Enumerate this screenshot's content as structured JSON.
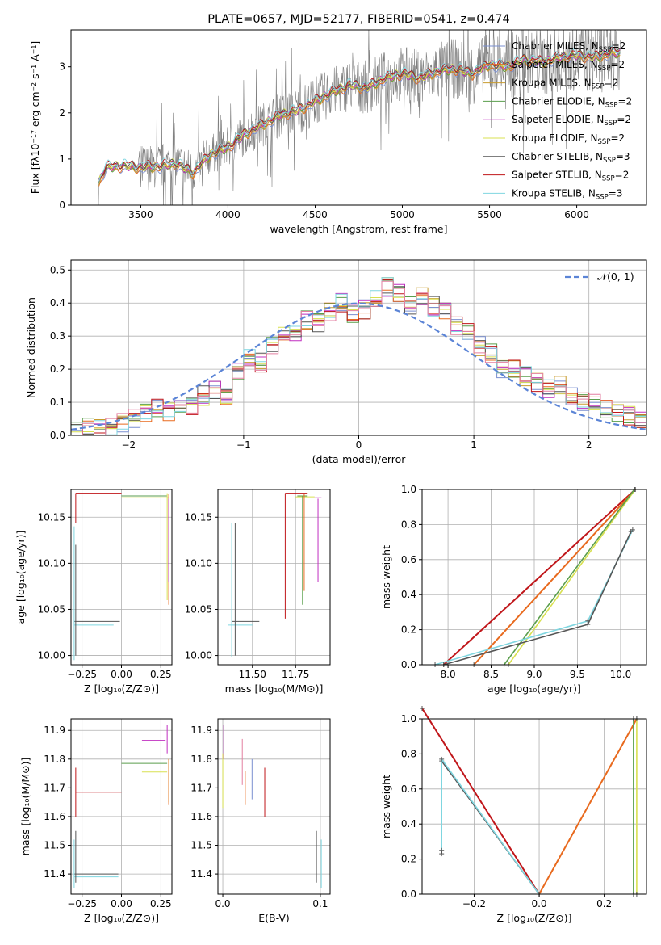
{
  "colors": {
    "chabrier_miles": "#7a8fd0",
    "salpeter_miles": "#e86a1e",
    "kroupa_miles": "#c89b2e",
    "chabrier_elodie": "#5a9e4c",
    "salpeter_elodie": "#c02fc0",
    "kroupa_elodie": "#d8e050",
    "chabrier_stelib": "#555555",
    "salpeter_stelib": "#c0161a",
    "kroupa_stelib": "#7fd6e0",
    "normal": "#5b84d6",
    "data": "#808080",
    "pink": "#e37fa0",
    "grid": "#b0b0b0"
  },
  "chart_data": [
    {
      "id": "spectrum",
      "type": "line",
      "title": "PLATE=0657, MJD=52177, FIBERID=0541, z=0.474",
      "xlabel": "wavelength [Angstrom, rest frame]",
      "ylabel": "Flux [fλ10⁻¹⁷ erg cm⁻² s⁻¹ A⁻¹]",
      "xlim": [
        3100,
        6400
      ],
      "ylim": [
        0,
        3.8
      ],
      "xticks": [
        3500,
        4000,
        4500,
        5000,
        5500,
        6000
      ],
      "yticks": [
        0,
        1,
        2,
        3
      ],
      "grid": false,
      "legend_position": "top-right",
      "model_x": [
        3200,
        3300,
        3400,
        3500,
        3600,
        3700,
        3800,
        3900,
        4000,
        4100,
        4200,
        4300,
        4400,
        4500,
        4600,
        4700,
        4800,
        4900,
        5000,
        5100,
        5200,
        5300,
        5400,
        5500,
        5600,
        5700,
        5800,
        5900,
        6000,
        6100,
        6200
      ],
      "model_y": [
        0.0,
        0.82,
        0.85,
        0.82,
        0.84,
        0.9,
        0.7,
        1.1,
        1.25,
        1.55,
        1.75,
        1.95,
        2.05,
        2.25,
        2.45,
        2.6,
        2.55,
        2.75,
        2.85,
        2.75,
        2.9,
        2.95,
        2.85,
        3.05,
        3.0,
        3.15,
        3.1,
        3.2,
        3.25,
        3.2,
        3.3
      ],
      "series": [
        {
          "name": "Chabrier MILES, N_SSP=2",
          "color_key": "chabrier_miles"
        },
        {
          "name": "Salpeter MILES, N_SSP=2",
          "color_key": "salpeter_miles"
        },
        {
          "name": "Kroupa MILES, N_SSP=2",
          "color_key": "kroupa_miles"
        },
        {
          "name": "Chabrier ELODIE, N_SSP=2",
          "color_key": "chabrier_elodie"
        },
        {
          "name": "Salpeter ELODIE, N_SSP=2",
          "color_key": "salpeter_elodie"
        },
        {
          "name": "Kroupa ELODIE, N_SSP=2",
          "color_key": "kroupa_elodie"
        },
        {
          "name": "Chabrier STELIB, N_SSP=3",
          "color_key": "chabrier_stelib"
        },
        {
          "name": "Salpeter STELIB, N_SSP=2",
          "color_key": "salpeter_stelib"
        },
        {
          "name": "Kroupa STELIB, N_SSP=3",
          "color_key": "kroupa_stelib"
        }
      ]
    },
    {
      "id": "residuals",
      "type": "line",
      "xlabel": "(data-model)/error",
      "ylabel": "Normed distribution",
      "xlim": [
        -2.5,
        2.5
      ],
      "ylim": [
        0,
        0.53
      ],
      "xticks": [
        -2,
        -1,
        0,
        1,
        2
      ],
      "yticks": [
        0.0,
        0.1,
        0.2,
        0.3,
        0.4,
        0.5
      ],
      "grid": true,
      "legend_position": "top-right",
      "legend_label": "𝒩(0, 1)",
      "hist_x": [
        -2.5,
        -2.4,
        -2.3,
        -2.2,
        -2.1,
        -2.0,
        -1.9,
        -1.8,
        -1.7,
        -1.6,
        -1.5,
        -1.4,
        -1.3,
        -1.2,
        -1.1,
        -1.0,
        -0.9,
        -0.8,
        -0.7,
        -0.6,
        -0.5,
        -0.4,
        -0.3,
        -0.2,
        -0.1,
        0.0,
        0.1,
        0.2,
        0.3,
        0.4,
        0.5,
        0.6,
        0.7,
        0.8,
        0.9,
        1.0,
        1.1,
        1.2,
        1.3,
        1.4,
        1.5,
        1.6,
        1.7,
        1.8,
        1.9,
        2.0,
        2.1,
        2.2,
        2.3,
        2.4
      ],
      "hist_y": [
        0.02,
        0.03,
        0.03,
        0.03,
        0.04,
        0.05,
        0.07,
        0.08,
        0.07,
        0.1,
        0.09,
        0.12,
        0.14,
        0.12,
        0.19,
        0.24,
        0.22,
        0.27,
        0.3,
        0.31,
        0.35,
        0.34,
        0.37,
        0.4,
        0.37,
        0.38,
        0.41,
        0.45,
        0.43,
        0.39,
        0.42,
        0.39,
        0.38,
        0.33,
        0.31,
        0.27,
        0.25,
        0.2,
        0.2,
        0.18,
        0.16,
        0.14,
        0.15,
        0.12,
        0.1,
        0.1,
        0.08,
        0.07,
        0.06,
        0.05
      ]
    },
    {
      "id": "age_vs_z",
      "type": "line",
      "xlabel": "Z [log₁₀(Z/Z⊙)]",
      "ylabel": "age  [log₁₀(age/yr)]",
      "xlim": [
        -0.32,
        0.32
      ],
      "ylim": [
        9.99,
        10.18
      ],
      "xticks": [
        -0.25,
        0.0,
        0.25
      ],
      "yticks": [
        10.0,
        10.05,
        10.1,
        10.15
      ],
      "grid": true
    },
    {
      "id": "age_vs_mass",
      "type": "line",
      "xlabel": "mass [log₁₀(M/M⊙)]",
      "xlim": [
        11.3,
        11.95
      ],
      "ylim": [
        9.99,
        10.18
      ],
      "xticks": [
        11.5,
        11.75
      ],
      "yticks": [
        10.0,
        10.05,
        10.1,
        10.15
      ],
      "grid": true
    },
    {
      "id": "mass_weight_vs_age",
      "type": "line",
      "xlabel": "age  [log₁₀(age/yr)]",
      "ylabel": "mass weight",
      "xlim": [
        7.7,
        10.3
      ],
      "ylim": [
        0,
        1.0
      ],
      "xticks": [
        8.0,
        8.5,
        9.0,
        9.5,
        10.0
      ],
      "yticks": [
        0.0,
        0.2,
        0.4,
        0.6,
        0.8,
        1.0
      ],
      "grid": true
    },
    {
      "id": "mass_vs_z",
      "type": "line",
      "xlabel": "Z [log₁₀(Z/Z⊙)]",
      "ylabel": "mass [log₁₀(M/M⊙)]",
      "xlim": [
        -0.32,
        0.32
      ],
      "ylim": [
        11.33,
        11.94
      ],
      "xticks": [
        -0.25,
        0.0,
        0.25
      ],
      "yticks": [
        11.4,
        11.5,
        11.6,
        11.7,
        11.8,
        11.9
      ],
      "grid": true
    },
    {
      "id": "mass_vs_ebv",
      "type": "line",
      "xlabel": "E(B-V)",
      "xlim": [
        -0.005,
        0.11
      ],
      "ylim": [
        11.33,
        11.94
      ],
      "xticks": [
        0.0,
        0.1
      ],
      "yticks": [
        11.4,
        11.5,
        11.6,
        11.7,
        11.8,
        11.9
      ],
      "grid": true
    },
    {
      "id": "mass_weight_vs_z",
      "type": "line",
      "xlabel": "Z [log₁₀(Z/Z⊙)]",
      "ylabel": "mass weight",
      "xlim": [
        -0.36,
        0.33
      ],
      "ylim": [
        0,
        1.0
      ],
      "xticks": [
        -0.2,
        0.0,
        0.2
      ],
      "yticks": [
        0.0,
        0.2,
        0.4,
        0.6,
        0.8,
        1.0
      ],
      "grid": true
    }
  ]
}
